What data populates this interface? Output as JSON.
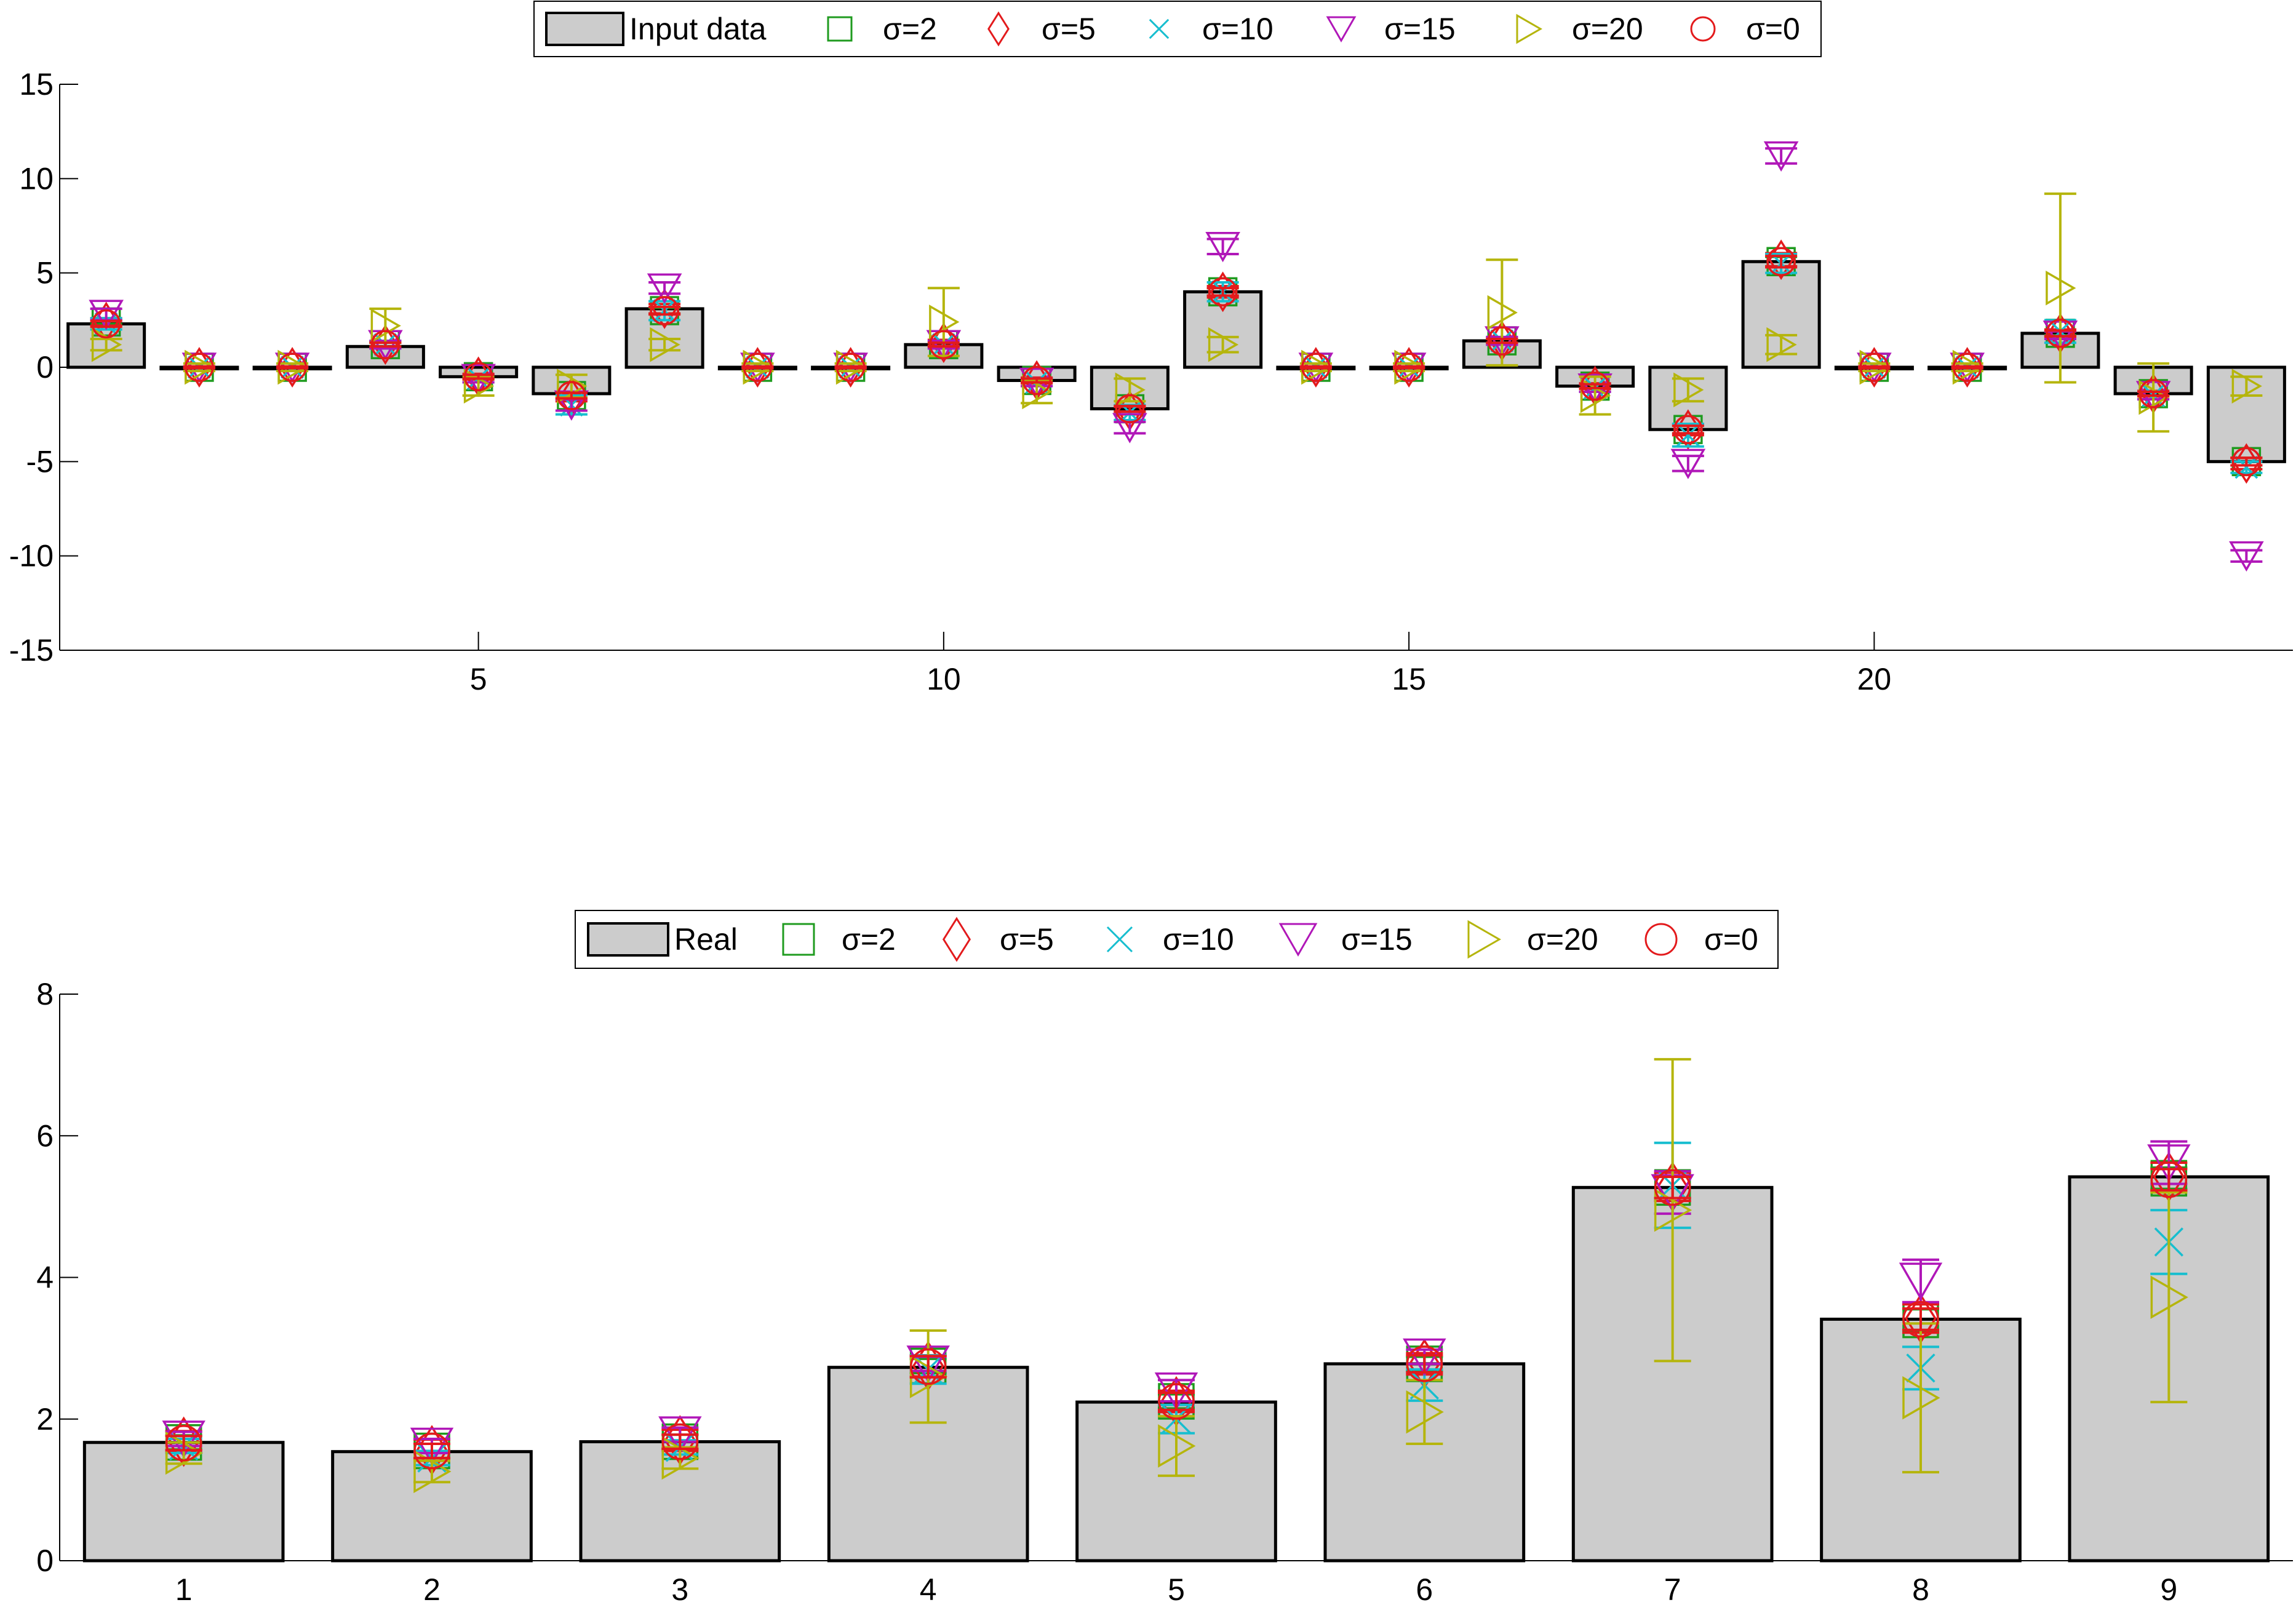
{
  "charts": [
    {
      "id": "top",
      "type": "bar",
      "categories": [
        "1",
        "2",
        "3",
        "4",
        "5",
        "6",
        "7",
        "8",
        "9",
        "10",
        "11",
        "12",
        "13",
        "14",
        "15",
        "16",
        "17",
        "18",
        "19",
        "20",
        "21",
        "22",
        "23",
        "24"
      ],
      "x_ticks": [
        "5",
        "10",
        "15",
        "20"
      ],
      "x_tick_values": [
        5,
        10,
        15,
        20
      ],
      "y_ticks": [
        "15",
        "10",
        "5",
        "0",
        "-5",
        "-10",
        "-15"
      ],
      "y_tick_values": [
        15,
        10,
        5,
        0,
        -5,
        -10,
        -15
      ],
      "ylim": [
        -15,
        15
      ],
      "bar_values": [
        2.3,
        0,
        0,
        1.1,
        -0.5,
        -1.4,
        3.1,
        0,
        0,
        1.2,
        -0.7,
        -2.2,
        4.0,
        0,
        0,
        1.4,
        -1.0,
        -3.3,
        5.6,
        0,
        0,
        1.8,
        -1.4,
        -5.0
      ],
      "legend": {
        "bar_label": "Input data",
        "series_labels": [
          "σ=2",
          "σ=5",
          "σ=10",
          "σ=15",
          "σ=20",
          "σ=0"
        ]
      },
      "series": [
        {
          "name": "σ=2",
          "marker": "square",
          "color": "#1f9b1f",
          "values": [
            2.4,
            0,
            0,
            1.2,
            -0.5,
            -1.5,
            3.0,
            0,
            0,
            1.2,
            -0.7,
            -2.2,
            4.0,
            0,
            0,
            1.4,
            -1.0,
            -3.3,
            5.6,
            0,
            0,
            1.8,
            -1.4,
            -5.0
          ],
          "err": [
            0.1,
            0.05,
            0.05,
            0.1,
            0.1,
            0.15,
            0.15,
            0.05,
            0.05,
            0.1,
            0.1,
            0.15,
            0.2,
            0.05,
            0.05,
            0.1,
            0.1,
            0.2,
            0.25,
            0.05,
            0.05,
            0.1,
            0.1,
            0.2
          ]
        },
        {
          "name": "σ=5",
          "marker": "diamond",
          "color": "#e31a1c",
          "values": [
            2.4,
            0,
            0,
            1.2,
            -0.5,
            -1.6,
            3.1,
            0,
            0,
            1.3,
            -0.7,
            -2.3,
            4.0,
            0,
            0,
            1.4,
            -1.0,
            -3.3,
            5.7,
            0,
            0,
            1.8,
            -1.4,
            -5.1
          ],
          "err": [
            0.2,
            0.05,
            0.05,
            0.15,
            0.15,
            0.2,
            0.25,
            0.05,
            0.05,
            0.15,
            0.15,
            0.2,
            0.3,
            0.05,
            0.05,
            0.15,
            0.15,
            0.3,
            0.35,
            0.05,
            0.05,
            0.2,
            0.15,
            0.3
          ]
        },
        {
          "name": "σ=10",
          "marker": "x",
          "color": "#17becf",
          "values": [
            2.3,
            0,
            0,
            1.2,
            -0.6,
            -2.0,
            3.0,
            0,
            0,
            1.2,
            -0.8,
            -2.4,
            4.0,
            0,
            0,
            1.4,
            -1.1,
            -3.6,
            5.5,
            0,
            0,
            1.9,
            -1.5,
            -5.3
          ],
          "err": [
            0.3,
            0.05,
            0.05,
            0.2,
            0.2,
            0.5,
            0.5,
            0.05,
            0.05,
            0.2,
            0.2,
            0.4,
            0.5,
            0.05,
            0.05,
            0.2,
            0.2,
            0.6,
            0.5,
            0.05,
            0.05,
            0.6,
            0.2,
            0.3
          ]
        },
        {
          "name": "σ=15",
          "marker": "triangle-down",
          "color": "#b017b8",
          "values": [
            2.8,
            0,
            0,
            1.2,
            -0.6,
            -2.0,
            4.2,
            0,
            0,
            1.2,
            -0.8,
            -3.2,
            6.4,
            0,
            0,
            1.4,
            -1.1,
            -5.1,
            11.2,
            0,
            0,
            1.7,
            -1.5,
            -10.0
          ],
          "err": [
            0.3,
            0.05,
            0.05,
            0.2,
            0.2,
            0.3,
            0.3,
            0.05,
            0.05,
            0.2,
            0.2,
            0.3,
            0.4,
            0.05,
            0.05,
            0.2,
            0.2,
            0.4,
            0.4,
            0.05,
            0.05,
            0.2,
            0.2,
            0.3
          ]
        },
        {
          "name": "σ=20",
          "marker": "triangle-right",
          "color": "#b5b50c",
          "values": [
            1.2,
            0,
            0,
            2.2,
            -1.0,
            -1.0,
            1.2,
            0,
            0,
            2.4,
            -1.3,
            -1.2,
            1.2,
            0,
            0,
            2.9,
            -1.5,
            -1.2,
            1.2,
            0,
            0,
            4.2,
            -1.6,
            -1.0
          ],
          "err": [
            0.3,
            0.2,
            0.2,
            0.9,
            0.5,
            0.6,
            0.3,
            0.2,
            0.2,
            1.8,
            0.6,
            0.6,
            0.4,
            0.2,
            0.2,
            2.8,
            1.0,
            0.6,
            0.5,
            0.2,
            0.2,
            5.0,
            1.8,
            0.5
          ]
        },
        {
          "name": "σ=0",
          "marker": "circle",
          "color": "#e31a1c",
          "values": [
            2.3,
            0,
            0,
            1.2,
            -0.5,
            -1.5,
            3.0,
            0,
            0,
            1.2,
            -0.7,
            -2.2,
            4.0,
            0,
            0,
            1.4,
            -1.0,
            -3.3,
            5.6,
            0,
            0,
            1.8,
            -1.4,
            -5.0
          ],
          "err": [
            0.15,
            0.05,
            0.05,
            0.1,
            0.1,
            0.15,
            0.2,
            0.05,
            0.05,
            0.1,
            0.1,
            0.15,
            0.2,
            0.05,
            0.05,
            0.1,
            0.1,
            0.2,
            0.3,
            0.05,
            0.05,
            0.15,
            0.1,
            0.2
          ]
        }
      ]
    },
    {
      "id": "bottom",
      "type": "bar",
      "categories": [
        "1",
        "2",
        "3",
        "4",
        "5",
        "6",
        "7",
        "8",
        "9"
      ],
      "x_ticks": [
        "1",
        "2",
        "3",
        "4",
        "5",
        "6",
        "7",
        "8",
        "9"
      ],
      "x_tick_values": [
        1,
        2,
        3,
        4,
        5,
        6,
        7,
        8,
        9
      ],
      "y_ticks": [
        "8",
        "6",
        "4",
        "2",
        "0"
      ],
      "y_tick_values": [
        8,
        6,
        4,
        2,
        0
      ],
      "ylim": [
        0,
        8
      ],
      "bar_values": [
        1.67,
        1.54,
        1.68,
        2.73,
        2.24,
        2.78,
        5.27,
        3.41,
        5.42
      ],
      "legend": {
        "bar_label": "Real",
        "series_labels": [
          "σ=2",
          "σ=5",
          "σ=10",
          "σ=15",
          "σ=20",
          "σ=0"
        ]
      },
      "series": [
        {
          "name": "σ=2",
          "marker": "square",
          "color": "#1f9b1f",
          "values": [
            1.67,
            1.55,
            1.68,
            2.75,
            2.25,
            2.78,
            5.27,
            3.4,
            5.4
          ],
          "err": [
            0.1,
            0.1,
            0.1,
            0.1,
            0.1,
            0.1,
            0.15,
            0.15,
            0.15
          ]
        },
        {
          "name": "σ=5",
          "marker": "diamond",
          "color": "#e31a1c",
          "values": [
            1.68,
            1.56,
            1.7,
            2.75,
            2.25,
            2.78,
            5.28,
            3.42,
            5.42
          ],
          "err": [
            0.15,
            0.15,
            0.15,
            0.15,
            0.15,
            0.15,
            0.2,
            0.2,
            0.2
          ]
        },
        {
          "name": "σ=10",
          "marker": "x",
          "color": "#17becf",
          "values": [
            1.62,
            1.45,
            1.6,
            2.7,
            2.0,
            2.48,
            5.3,
            2.72,
            4.5
          ],
          "err": [
            0.1,
            0.1,
            0.1,
            0.2,
            0.2,
            0.22,
            0.6,
            0.3,
            0.45
          ]
        },
        {
          "name": "σ=15",
          "marker": "triangle-down",
          "color": "#b017b8",
          "values": [
            1.72,
            1.62,
            1.78,
            2.78,
            2.4,
            2.88,
            5.2,
            3.95,
            5.62
          ],
          "err": [
            0.1,
            0.1,
            0.1,
            0.1,
            0.15,
            0.1,
            0.3,
            0.3,
            0.3
          ]
        },
        {
          "name": "σ=20",
          "marker": "triangle-right",
          "color": "#b5b50c",
          "values": [
            1.52,
            1.26,
            1.45,
            2.6,
            1.62,
            2.1,
            4.95,
            2.3,
            3.72
          ],
          "err": [
            0.15,
            0.15,
            0.15,
            0.65,
            0.42,
            0.45,
            2.13,
            1.05,
            1.48
          ]
        },
        {
          "name": "σ=0",
          "marker": "circle",
          "color": "#e31a1c",
          "values": [
            1.66,
            1.55,
            1.68,
            2.74,
            2.25,
            2.78,
            5.27,
            3.41,
            5.38
          ],
          "err": [
            0.1,
            0.1,
            0.1,
            0.15,
            0.12,
            0.12,
            0.15,
            0.15,
            0.15
          ]
        }
      ]
    }
  ],
  "chart_data": [
    {
      "type": "bar",
      "categories": [
        "1",
        "2",
        "3",
        "4",
        "5",
        "6",
        "7",
        "8",
        "9",
        "10",
        "11",
        "12",
        "13",
        "14",
        "15",
        "16",
        "17",
        "18",
        "19",
        "20",
        "21",
        "22",
        "23",
        "24"
      ],
      "values": [
        2.3,
        0,
        0,
        1.1,
        -0.5,
        -1.4,
        3.1,
        0,
        0,
        1.2,
        -0.7,
        -2.2,
        4.0,
        0,
        0,
        1.4,
        -1.0,
        -3.3,
        5.6,
        0,
        0,
        1.8,
        -1.4,
        -5.0
      ],
      "legend_entries": [
        "Input data",
        "σ=2",
        "σ=5",
        "σ=10",
        "σ=15",
        "σ=20",
        "σ=0"
      ],
      "ylim": [
        -15,
        15
      ],
      "xticks": [
        5,
        10,
        15,
        20
      ],
      "legend_position": "top-center"
    },
    {
      "type": "bar",
      "categories": [
        "1",
        "2",
        "3",
        "4",
        "5",
        "6",
        "7",
        "8",
        "9"
      ],
      "values": [
        1.67,
        1.54,
        1.68,
        2.73,
        2.24,
        2.78,
        5.27,
        3.41,
        5.42
      ],
      "legend_entries": [
        "Real",
        "σ=2",
        "σ=5",
        "σ=10",
        "σ=15",
        "σ=20",
        "σ=0"
      ],
      "ylim": [
        0,
        8
      ],
      "xticks": [
        1,
        2,
        3,
        4,
        5,
        6,
        7,
        8,
        9
      ],
      "legend_position": "top-center"
    }
  ]
}
